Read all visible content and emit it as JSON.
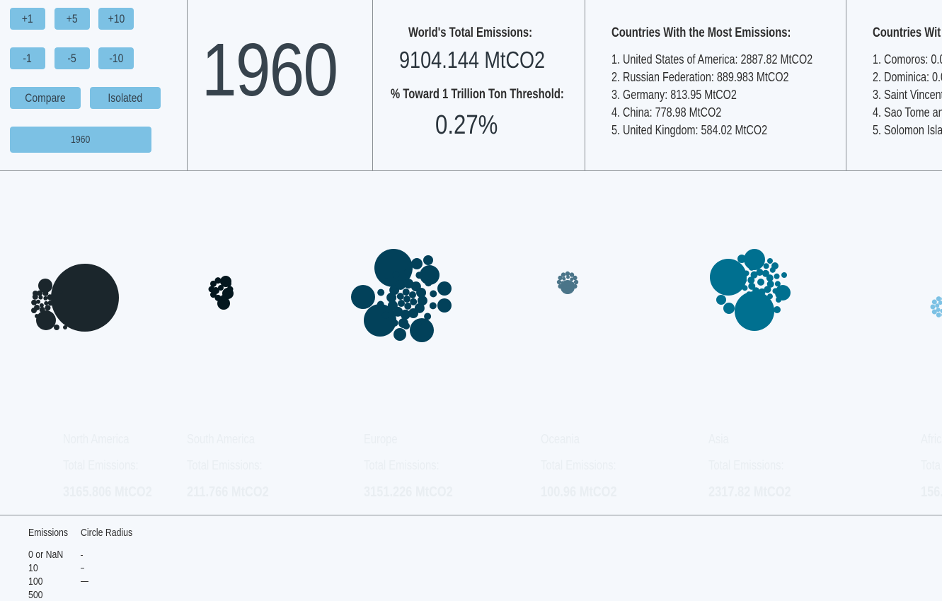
{
  "controls": {
    "plus1": "+1",
    "plus5": "+5",
    "plus10": "+10",
    "minus1": "-1",
    "minus5": "-5",
    "minus10": "-10",
    "compare": "Compare",
    "isolated": "Isolated",
    "year_select": "1960"
  },
  "year": "1960",
  "world": {
    "title": "World's Total Emissions:",
    "value": "9104.144 MtCO2",
    "threshold_title": "% Toward 1 Trillion Ton Threshold:",
    "threshold_value": "0.27%"
  },
  "most": {
    "title": "Countries With the Most Emissions:",
    "items": [
      "1. United States of America: 2887.82 MtCO2",
      "2. Russian Federation: 889.983 MtCO2",
      "3. Germany: 813.95 MtCO2",
      "4. China: 778.98 MtCO2",
      "5. United Kingdom: 584.02 MtCO2"
    ]
  },
  "least": {
    "title": "Countries Wit",
    "items": [
      "1. Comoros: 0.0",
      "2. Dominica: 0.0",
      "3. Saint Vincent",
      "4. Sao Tome and",
      "5. Solomon Islan"
    ]
  },
  "regions": [
    {
      "name": "North America",
      "label": "Total Emissions:",
      "value": "3165.806 MtCO2",
      "color": "#1b262c"
    },
    {
      "name": "South America",
      "label": "Total Emissions:",
      "value": "211.766 MtCO2",
      "color": "#04171f"
    },
    {
      "name": "Europe",
      "label": "Total Emissions:",
      "value": "3151.226 MtCO2",
      "color": "#02415a"
    },
    {
      "name": "Oceania",
      "label": "Total Emissions:",
      "value": "100.96 MtCO2",
      "color": "#4b7589"
    },
    {
      "name": "Asia",
      "label": "Total Emissions:",
      "value": "2317.82 MtCO2",
      "color": "#007090"
    },
    {
      "name": "Afric",
      "label": "Tota",
      "value": "156.",
      "color": "#7cc1e4"
    }
  ],
  "legend": {
    "col1": "Emissions",
    "col2": "Circle Radius",
    "rows": [
      "0 or NaN",
      "10",
      "100",
      "500"
    ]
  }
}
